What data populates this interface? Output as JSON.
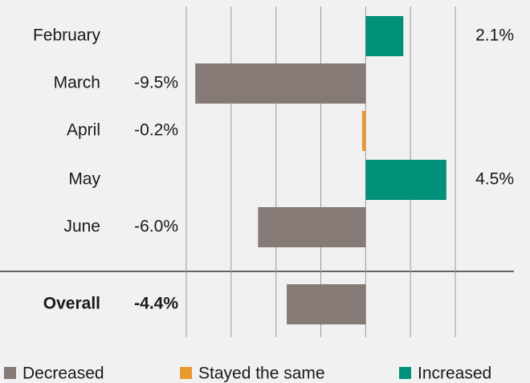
{
  "chart_data": {
    "type": "hbar",
    "categories": [
      "February",
      "March",
      "April",
      "May",
      "June",
      "Overall"
    ],
    "values": [
      2.1,
      -9.5,
      -0.2,
      4.5,
      -6.0,
      -4.4
    ],
    "value_labels": [
      "2.1%",
      "-9.5%",
      "-0.2%",
      "4.5%",
      "-6.0%",
      "-4.4%"
    ],
    "colors": [
      "#00907a",
      "#857a75",
      "#e89a2e",
      "#00907a",
      "#857a75",
      "#857a75"
    ],
    "legend": [
      {
        "name": "Decreased",
        "color": "#857a75"
      },
      {
        "name": "Stayed the same",
        "color": "#e89a2e"
      },
      {
        "name": "Increased",
        "color": "#00907a"
      }
    ],
    "xlim": [
      -10,
      5
    ],
    "xticks": [
      -10,
      -7.5,
      -5,
      -2.5,
      0,
      2.5,
      5
    ],
    "grid": true
  }
}
